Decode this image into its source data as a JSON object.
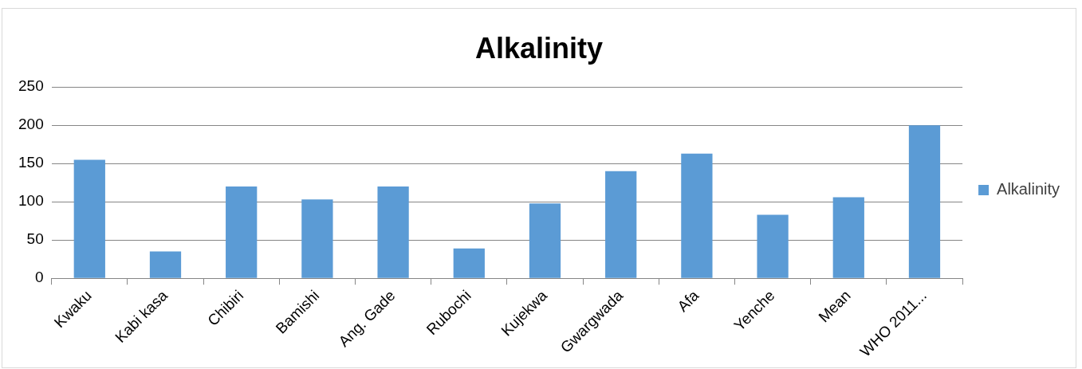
{
  "chart_data": {
    "type": "bar",
    "title": "Alkalinity",
    "categories": [
      "Kwaku",
      "Kabi kasa",
      "Chibiri",
      "Bamishi",
      "Ang. Gade",
      "Rubochi",
      "Kujekwa",
      "Gwargwada",
      "Afa",
      "Yenche",
      "Mean",
      "WHO 2011..."
    ],
    "series": [
      {
        "name": "Alkalinity",
        "color": "#5b9bd5",
        "values": [
          155,
          35,
          120,
          103,
          120,
          39,
          98,
          140,
          163,
          83,
          106,
          200
        ]
      }
    ],
    "ylim": [
      0,
      250
    ],
    "yticks": [
      0,
      50,
      100,
      150,
      200,
      250
    ],
    "grid": "y",
    "legend": "right"
  }
}
